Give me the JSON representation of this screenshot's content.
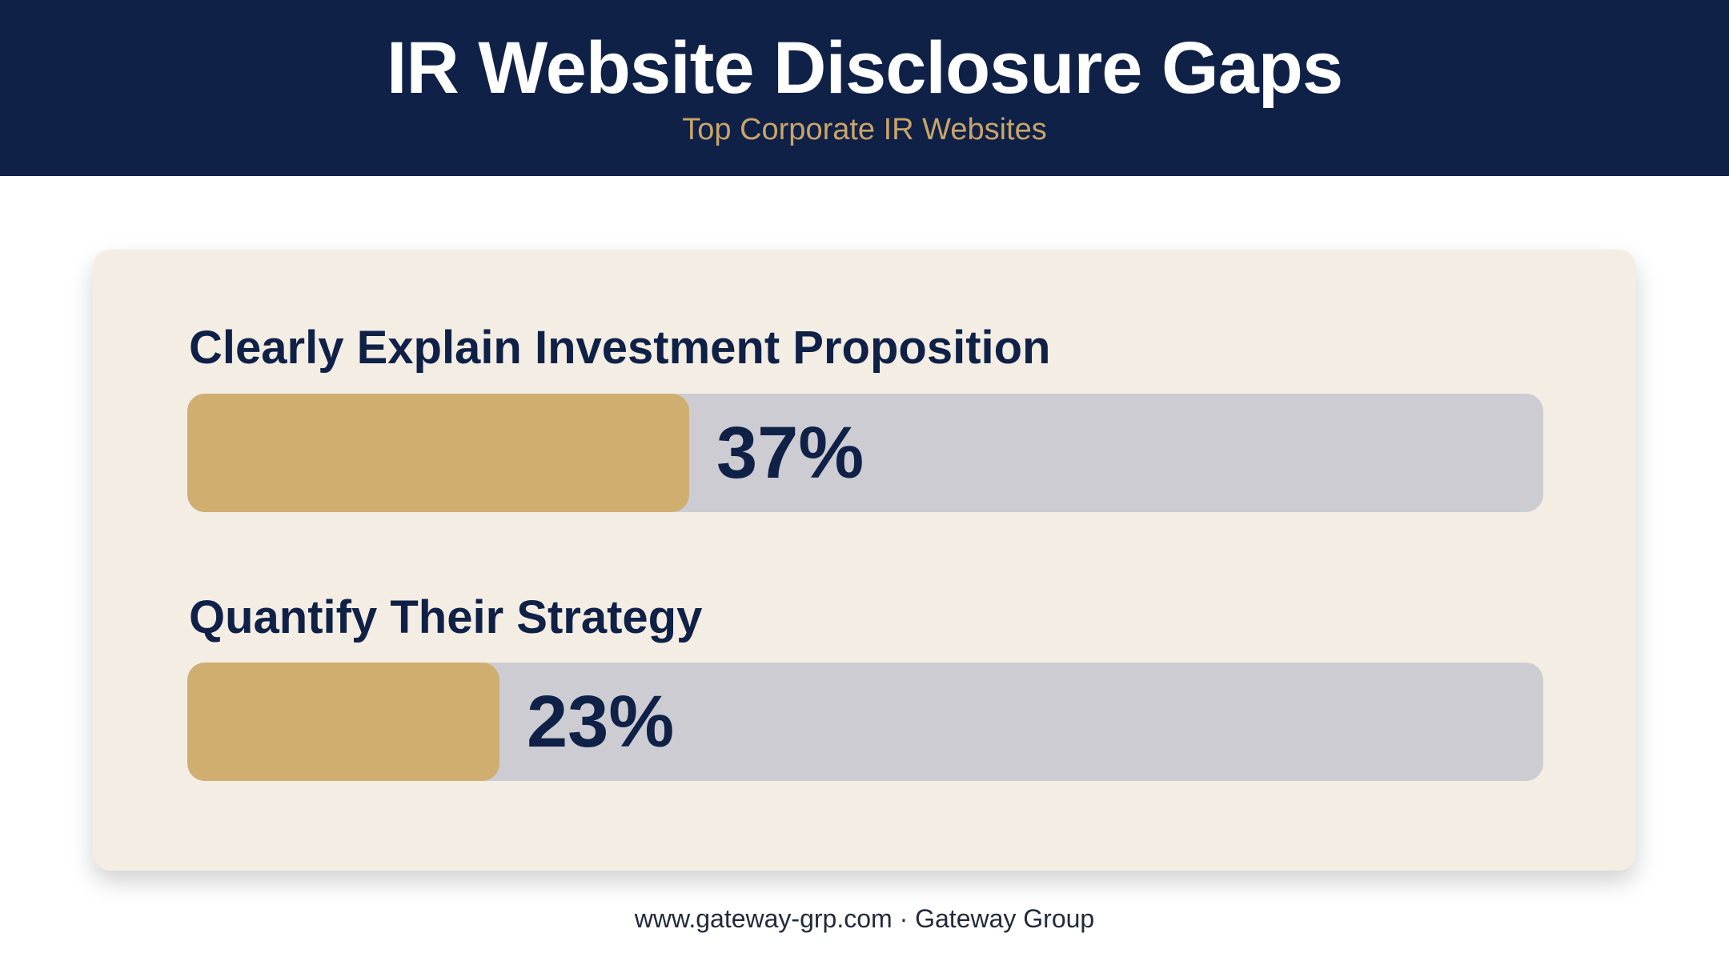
{
  "header": {
    "title": "IR Website Disclosure Gaps",
    "subtitle": "Top Corporate IR Websites"
  },
  "chart_data": {
    "type": "bar",
    "orientation": "horizontal",
    "categories": [
      "Clearly Explain Investment Proposition",
      "Quantify Their Strategy"
    ],
    "values": [
      37,
      23
    ],
    "value_labels": [
      "37%",
      "23%"
    ],
    "unit": "%",
    "xlim": [
      0,
      100
    ],
    "grid": false
  },
  "footer": {
    "text": "www.gateway-grp.com · Gateway Group"
  },
  "colors": {
    "header_bg": "#0f2147",
    "accent": "#cfae6f",
    "track": "#cdccd2",
    "card_bg": "#f4ede4",
    "text_dark": "#0f2147"
  }
}
